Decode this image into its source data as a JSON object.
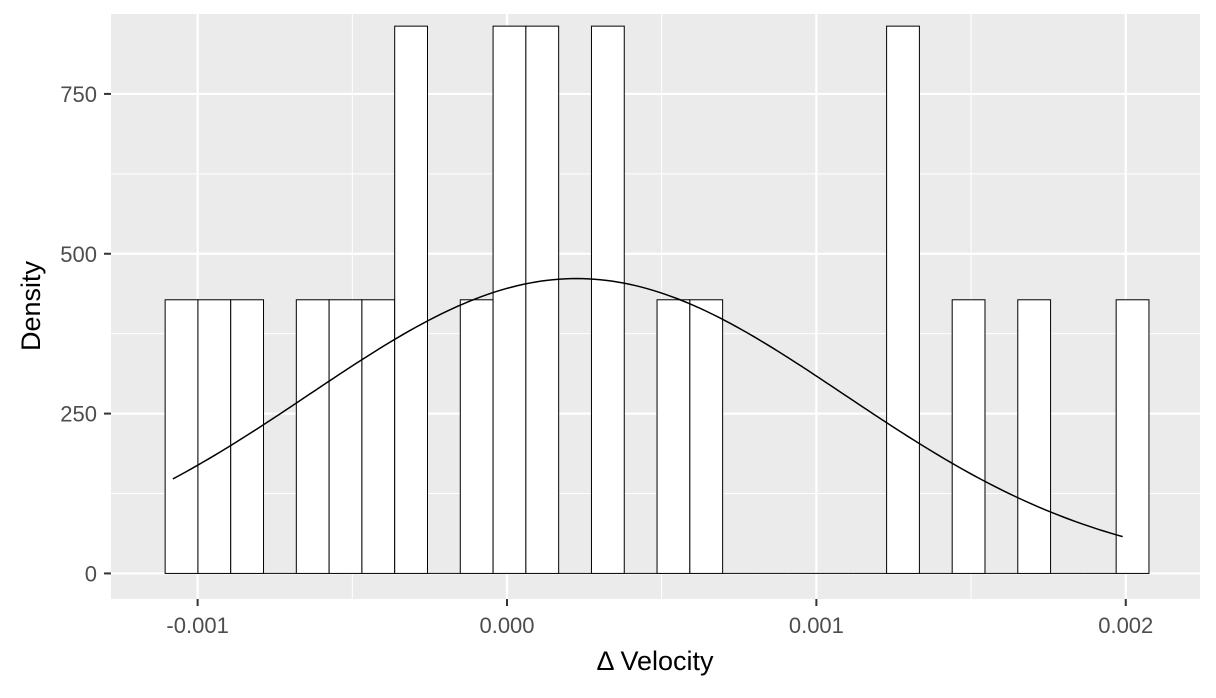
{
  "chart_data": {
    "type": "bar",
    "subtype": "histogram-with-density-curve",
    "title": "",
    "xlabel": "Δ Velocity",
    "ylabel": "Density",
    "xlim": [
      -0.00128,
      0.00224
    ],
    "ylim": [
      -40,
      875
    ],
    "grid": true,
    "x_ticks": [
      {
        "value": -0.001,
        "label": "-0.001"
      },
      {
        "value": 0.0,
        "label": "0.000"
      },
      {
        "value": 0.001,
        "label": "0.001"
      },
      {
        "value": 0.002,
        "label": "0.002"
      }
    ],
    "y_ticks": [
      {
        "value": 0,
        "label": "0"
      },
      {
        "value": 250,
        "label": "250"
      },
      {
        "value": 500,
        "label": "500"
      },
      {
        "value": 750,
        "label": "750"
      }
    ],
    "bin_width": 0.000106,
    "bins": [
      {
        "x0": -0.001105,
        "x1": -0.000999,
        "density": 428
      },
      {
        "x0": -0.000999,
        "x1": -0.000893,
        "density": 428
      },
      {
        "x0": -0.000893,
        "x1": -0.000787,
        "density": 428
      },
      {
        "x0": -0.000787,
        "x1": -0.000681,
        "density": 0
      },
      {
        "x0": -0.000681,
        "x1": -0.000575,
        "density": 428
      },
      {
        "x0": -0.000575,
        "x1": -0.000469,
        "density": 428
      },
      {
        "x0": -0.000469,
        "x1": -0.000363,
        "density": 428
      },
      {
        "x0": -0.000363,
        "x1": -0.000257,
        "density": 856
      },
      {
        "x0": -0.000257,
        "x1": -0.000151,
        "density": 0
      },
      {
        "x0": -0.000151,
        "x1": -4.5e-05,
        "density": 428
      },
      {
        "x0": -4.5e-05,
        "x1": 6.1e-05,
        "density": 856
      },
      {
        "x0": 6.1e-05,
        "x1": 0.000167,
        "density": 856
      },
      {
        "x0": 0.000167,
        "x1": 0.000273,
        "density": 0
      },
      {
        "x0": 0.000273,
        "x1": 0.000379,
        "density": 856
      },
      {
        "x0": 0.000379,
        "x1": 0.000485,
        "density": 0
      },
      {
        "x0": 0.000485,
        "x1": 0.000591,
        "density": 428
      },
      {
        "x0": 0.000591,
        "x1": 0.000697,
        "density": 428
      },
      {
        "x0": 0.000697,
        "x1": 0.000803,
        "density": 0
      },
      {
        "x0": 0.000803,
        "x1": 0.000909,
        "density": 0
      },
      {
        "x0": 0.000909,
        "x1": 0.001015,
        "density": 0
      },
      {
        "x0": 0.001015,
        "x1": 0.001121,
        "density": 0
      },
      {
        "x0": 0.001121,
        "x1": 0.001227,
        "density": 0
      },
      {
        "x0": 0.001227,
        "x1": 0.001333,
        "density": 856
      },
      {
        "x0": 0.001333,
        "x1": 0.001439,
        "density": 0
      },
      {
        "x0": 0.001439,
        "x1": 0.001545,
        "density": 428
      },
      {
        "x0": 0.001545,
        "x1": 0.001651,
        "density": 0
      },
      {
        "x0": 0.001651,
        "x1": 0.001757,
        "density": 428
      },
      {
        "x0": 0.001757,
        "x1": 0.001863,
        "density": 0
      },
      {
        "x0": 0.001863,
        "x1": 0.001969,
        "density": 0
      },
      {
        "x0": 0.001969,
        "x1": 0.002075,
        "density": 428
      }
    ],
    "density_curve": {
      "x_range": [
        -0.00108,
        0.00199
      ],
      "mean": 0.000225,
      "sd": 0.000865
    },
    "colors": {
      "panel_background": "#ebebeb",
      "grid": "#ffffff",
      "bar_fill": "#ffffff",
      "bar_outline": "#000000",
      "curve": "#000000"
    }
  }
}
